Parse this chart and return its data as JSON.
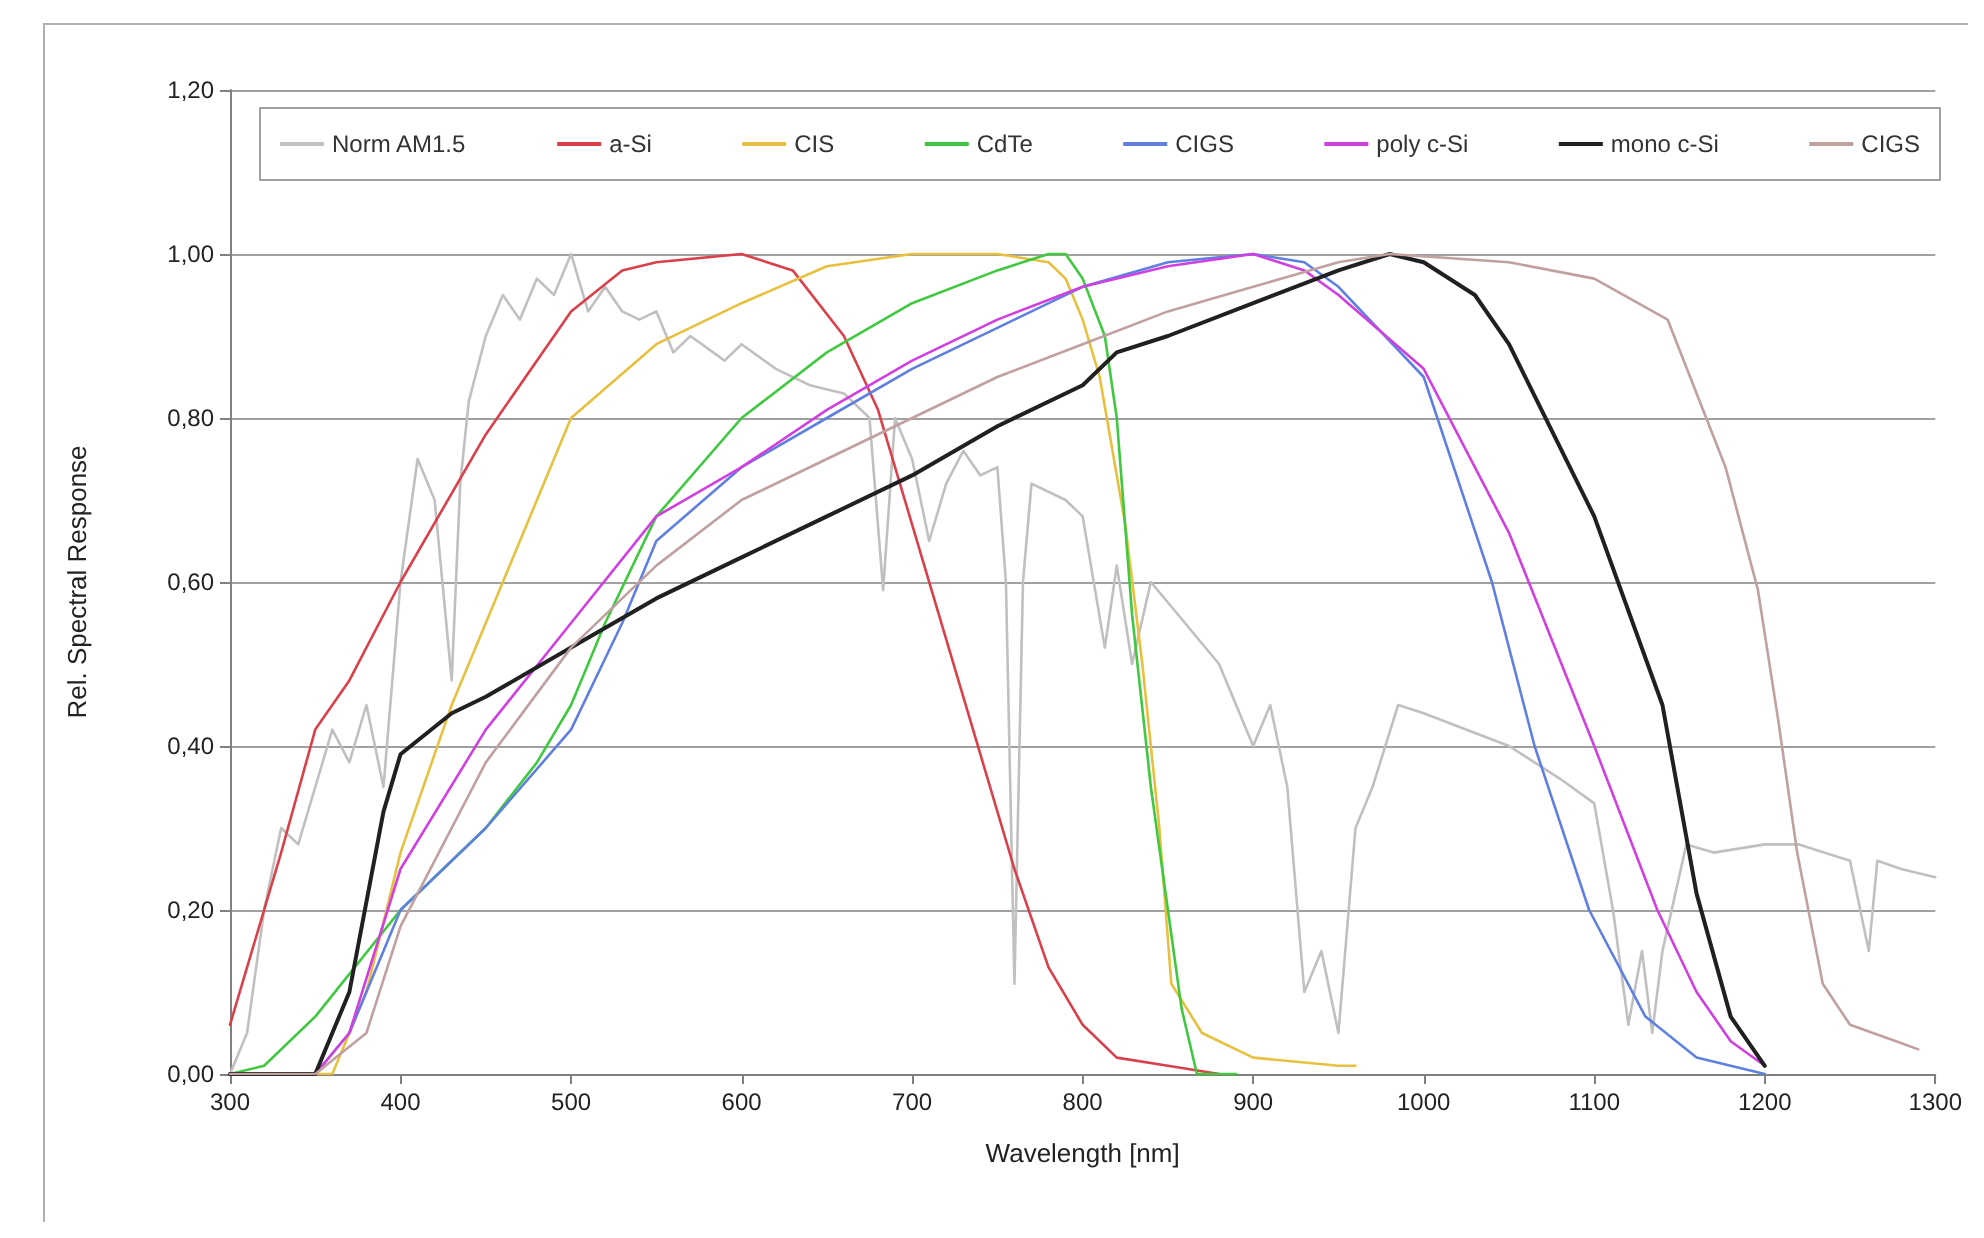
{
  "chart_data": {
    "type": "line",
    "xlabel": "Wavelength [nm]",
    "ylabel": "Rel. Spectral Response",
    "xlim": [
      300,
      1300
    ],
    "xticks": [
      300,
      400,
      500,
      600,
      700,
      800,
      900,
      1000,
      1100,
      1200,
      1300
    ],
    "ylim": [
      0,
      1.2
    ],
    "yticks": [
      {
        "value": 0,
        "label": "0,00"
      },
      {
        "value": 0.2,
        "label": "0,20"
      },
      {
        "value": 0.4,
        "label": "0,40"
      },
      {
        "value": 0.6,
        "label": "0,60"
      },
      {
        "value": 0.8,
        "label": "0,80"
      },
      {
        "value": 1.0,
        "label": "1,00"
      },
      {
        "value": 1.2,
        "label": "1,20"
      }
    ],
    "grid": "y",
    "legend": "top",
    "marker": "none",
    "line_style": "solid",
    "series": [
      {
        "name": "Norm AM1.5",
        "color": "#c0c0c0",
        "x": [
          300,
          310,
          320,
          330,
          340,
          350,
          360,
          370,
          380,
          390,
          400,
          410,
          420,
          430,
          435,
          440,
          450,
          460,
          470,
          480,
          490,
          500,
          510,
          520,
          530,
          540,
          550,
          560,
          570,
          590,
          600,
          620,
          640,
          660,
          675,
          683,
          690,
          700,
          710,
          720,
          730,
          740,
          750,
          755,
          760,
          765,
          770,
          790,
          800,
          813,
          820,
          829,
          840,
          860,
          880,
          900,
          910,
          920,
          930,
          940,
          950,
          960,
          970,
          985,
          1000,
          1050,
          1080,
          1100,
          1111,
          1120,
          1128,
          1134,
          1140,
          1154,
          1170,
          1200,
          1220,
          1250,
          1261,
          1266,
          1280,
          1300
        ],
        "values": [
          0.0,
          0.05,
          0.2,
          0.3,
          0.28,
          0.35,
          0.42,
          0.38,
          0.45,
          0.35,
          0.6,
          0.75,
          0.7,
          0.48,
          0.72,
          0.82,
          0.9,
          0.95,
          0.92,
          0.97,
          0.95,
          1.0,
          0.93,
          0.96,
          0.93,
          0.92,
          0.93,
          0.88,
          0.9,
          0.87,
          0.89,
          0.86,
          0.84,
          0.83,
          0.8,
          0.59,
          0.8,
          0.75,
          0.65,
          0.72,
          0.76,
          0.73,
          0.74,
          0.6,
          0.11,
          0.6,
          0.72,
          0.7,
          0.68,
          0.52,
          0.62,
          0.5,
          0.6,
          0.55,
          0.5,
          0.4,
          0.45,
          0.35,
          0.1,
          0.15,
          0.05,
          0.3,
          0.35,
          0.45,
          0.44,
          0.4,
          0.36,
          0.33,
          0.2,
          0.06,
          0.15,
          0.05,
          0.15,
          0.28,
          0.27,
          0.28,
          0.28,
          0.26,
          0.15,
          0.26,
          0.25,
          0.24
        ]
      },
      {
        "name": "a-Si",
        "color": "#d9404a",
        "x": [
          300,
          330,
          350,
          370,
          400,
          450,
          500,
          530,
          550,
          600,
          630,
          660,
          680,
          700,
          720,
          740,
          760,
          780,
          800,
          820,
          850,
          880
        ],
        "values": [
          0.06,
          0.27,
          0.42,
          0.48,
          0.6,
          0.78,
          0.93,
          0.98,
          0.99,
          1.0,
          0.98,
          0.9,
          0.81,
          0.67,
          0.53,
          0.39,
          0.25,
          0.13,
          0.06,
          0.02,
          0.01,
          0.0
        ]
      },
      {
        "name": "CIS",
        "color": "#e8c040",
        "x": [
          340,
          360,
          380,
          400,
          430,
          460,
          500,
          550,
          600,
          650,
          700,
          750,
          780,
          790,
          800,
          810,
          825,
          835,
          845,
          852,
          870,
          900,
          950,
          960
        ],
        "values": [
          0.0,
          0.0,
          0.1,
          0.27,
          0.45,
          0.6,
          0.8,
          0.89,
          0.94,
          0.985,
          1.0,
          1.0,
          0.99,
          0.97,
          0.92,
          0.85,
          0.67,
          0.5,
          0.3,
          0.11,
          0.05,
          0.02,
          0.01,
          0.01
        ]
      },
      {
        "name": "CdTe",
        "color": "#40c840",
        "x": [
          300,
          320,
          350,
          400,
          450,
          480,
          500,
          520,
          550,
          600,
          650,
          700,
          750,
          780,
          790,
          800,
          813,
          820,
          829,
          840,
          850,
          858,
          867,
          890
        ],
        "values": [
          0.0,
          0.01,
          0.07,
          0.2,
          0.3,
          0.38,
          0.45,
          0.55,
          0.68,
          0.8,
          0.88,
          0.94,
          0.98,
          1.0,
          1.0,
          0.97,
          0.9,
          0.8,
          0.56,
          0.35,
          0.2,
          0.08,
          0.0,
          0.0
        ]
      },
      {
        "name": "CIGS",
        "color": "#6080e0",
        "x": [
          300,
          350,
          370,
          400,
          450,
          500,
          530,
          550,
          600,
          650,
          700,
          750,
          800,
          850,
          900,
          930,
          950,
          1000,
          1040,
          1065,
          1097,
          1130,
          1160,
          1200
        ],
        "values": [
          0.0,
          0.0,
          0.05,
          0.2,
          0.3,
          0.42,
          0.55,
          0.65,
          0.74,
          0.8,
          0.86,
          0.91,
          0.96,
          0.99,
          1.0,
          0.99,
          0.96,
          0.85,
          0.6,
          0.4,
          0.2,
          0.07,
          0.02,
          0.0
        ]
      },
      {
        "name": "poly c-Si",
        "color": "#d040e0",
        "x": [
          300,
          350,
          370,
          400,
          450,
          500,
          550,
          600,
          650,
          700,
          750,
          800,
          850,
          900,
          930,
          950,
          1000,
          1050,
          1100,
          1137,
          1160,
          1180,
          1200
        ],
        "values": [
          0.0,
          0.0,
          0.05,
          0.25,
          0.42,
          0.55,
          0.68,
          0.74,
          0.81,
          0.87,
          0.92,
          0.96,
          0.985,
          1.0,
          0.98,
          0.95,
          0.86,
          0.66,
          0.4,
          0.2,
          0.1,
          0.04,
          0.01
        ]
      },
      {
        "name": "mono c-Si",
        "color": "#202020",
        "x": [
          300,
          350,
          370,
          390,
          400,
          430,
          450,
          500,
          550,
          600,
          650,
          700,
          750,
          800,
          820,
          850,
          900,
          950,
          980,
          1000,
          1030,
          1050,
          1100,
          1140,
          1160,
          1180,
          1200
        ],
        "values": [
          0.0,
          0.0,
          0.1,
          0.32,
          0.39,
          0.44,
          0.46,
          0.52,
          0.58,
          0.63,
          0.68,
          0.73,
          0.79,
          0.84,
          0.88,
          0.9,
          0.94,
          0.98,
          1.0,
          0.99,
          0.95,
          0.89,
          0.68,
          0.45,
          0.22,
          0.07,
          0.01
        ]
      },
      {
        "name": "CIGS",
        "color": "#c0a0a0",
        "x": [
          300,
          350,
          380,
          400,
          450,
          500,
          550,
          600,
          650,
          700,
          750,
          800,
          850,
          900,
          950,
          980,
          1050,
          1100,
          1143,
          1177,
          1196,
          1208,
          1219,
          1234,
          1250,
          1277,
          1290
        ],
        "values": [
          0.0,
          0.0,
          0.05,
          0.18,
          0.38,
          0.52,
          0.62,
          0.7,
          0.75,
          0.8,
          0.85,
          0.89,
          0.93,
          0.96,
          0.99,
          1.0,
          0.99,
          0.97,
          0.92,
          0.74,
          0.59,
          0.43,
          0.27,
          0.11,
          0.06,
          0.04,
          0.03
        ]
      }
    ]
  }
}
